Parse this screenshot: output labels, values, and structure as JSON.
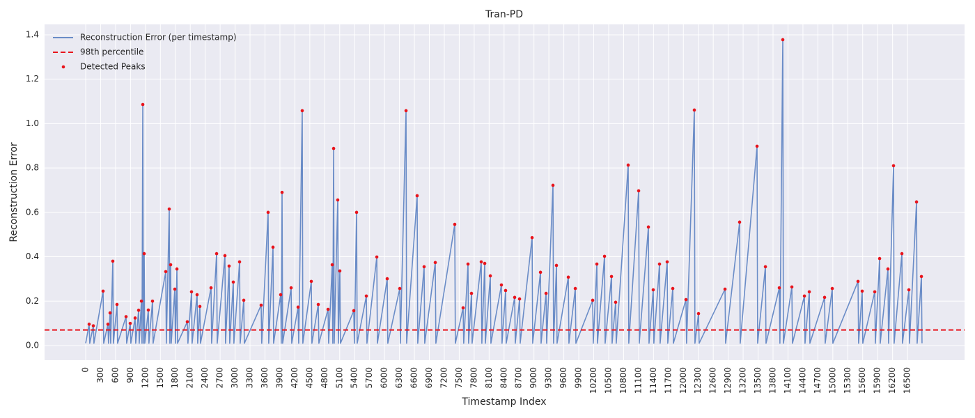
{
  "chart_data": {
    "type": "line",
    "title": "Tran-PD",
    "x_label": "Timestamp Index",
    "y_label": "Reconstruction Error",
    "xlim": [
      -825,
      17645
    ],
    "ylim": [
      -0.066,
      1.447
    ],
    "xticks": [
      0,
      300,
      600,
      900,
      1200,
      1500,
      1800,
      2100,
      2400,
      2700,
      3000,
      3300,
      3600,
      3900,
      4200,
      4500,
      4800,
      5100,
      5400,
      5700,
      6000,
      6300,
      6600,
      6900,
      7200,
      7500,
      7800,
      8100,
      8400,
      8700,
      9000,
      9300,
      9600,
      9900,
      10200,
      10500,
      10800,
      11100,
      11400,
      11700,
      12000,
      12300,
      12600,
      12900,
      13200,
      13500,
      13800,
      14100,
      14400,
      14700,
      15000,
      15300,
      15600,
      15900,
      16200,
      16500
    ],
    "yticks": [
      {
        "value": 0,
        "label": "0.0"
      },
      0.2,
      0.4,
      0.6,
      0.8,
      {
        "value": 1,
        "label": "1.0"
      },
      1.2,
      1.4
    ],
    "grid": true,
    "legend": "upper-left",
    "threshold": {
      "name": "98th percentile",
      "value": 0.07,
      "color": "#e8141c"
    },
    "series": [
      {
        "name": "Reconstruction Error (per timestamp)",
        "color": "#6a8cc7",
        "mark": "line",
        "x": [
          0,
          70,
          82,
          154,
          166,
          350,
          362,
          447,
          459,
          490,
          502,
          545,
          557,
          629,
          641,
          811,
          823,
          895,
          907,
          993,
          1005,
          1063,
          1075,
          1119,
          1131,
          1147,
          1159,
          1175,
          1187,
          1258,
          1270,
          1342,
          1354,
          1608,
          1620,
          1678,
          1690,
          1706,
          1718,
          1790,
          1802,
          1832,
          1844,
          2041,
          2053,
          2125,
          2137,
          2237,
          2249,
          2293,
          2305,
          2517,
          2529,
          2629,
          2641,
          2796,
          2808,
          2880,
          2892,
          2964,
          2976,
          3090,
          3102,
          3174,
          3186,
          3523,
          3535,
          3663,
          3675,
          3761,
          3773,
          3915,
          3927,
          3943,
          3955,
          4125,
          4137,
          4265,
          4277,
          4348,
          4360,
          4530,
          4542,
          4670,
          4682,
          4866,
          4878,
          4950,
          4962,
          4978,
          4990,
          5061,
          5073,
          5103,
          5115,
          5383,
          5395,
          5439,
          5451,
          5635,
          5647,
          5845,
          5857,
          6054,
          6066,
          6306,
          6318,
          6432,
          6444,
          6655,
          6667,
          6795,
          6807,
          7019,
          7031,
          7410,
          7422,
          7578,
          7590,
          7676,
          7688,
          7746,
          7758,
          7942,
          7954,
          8012,
          8024,
          8124,
          8136,
          8347,
          8359,
          8431,
          8443,
          8613,
          8625,
          8711,
          8723,
          8963,
          8975,
          9131,
          9143,
          9243,
          9255,
          9382,
          9394,
          9452,
          9464,
          9690,
          9702,
          9830,
          9842,
          10179,
          10191,
          10263,
          10275,
          10417,
          10429,
          10557,
          10569,
          10640,
          10652,
          10892,
          10904,
          11102,
          11114,
          11298,
          11310,
          11395,
          11407,
          11521,
          11533,
          11675,
          11687,
          11787,
          11799,
          12052,
          12064,
          12220,
          12232,
          12304,
          12316,
          12836,
          12848,
          13129,
          13141,
          13479,
          13491,
          13647,
          13659,
          13926,
          13938,
          13996,
          14008,
          14178,
          14190,
          14430,
          14442,
          14528,
          14540,
          14835,
          14847,
          14989,
          15001,
          15506,
          15518,
          15590,
          15602,
          15842,
          15854,
          15940,
          15952,
          16107,
          16119,
          16219,
          16231,
          16387,
          16399,
          16527,
          16539,
          16681,
          16693,
          16779,
          16791
        ],
        "values": [
          0.01,
          0.096,
          0.01,
          0.089,
          0.01,
          0.245,
          0.01,
          0.096,
          0.01,
          0.147,
          0.01,
          0.38,
          0.01,
          0.185,
          0.01,
          0.13,
          0.01,
          0.1,
          0.01,
          0.124,
          0.01,
          0.159,
          0.01,
          0.2,
          0.01,
          1.086,
          0.01,
          0.414,
          0.01,
          0.16,
          0.01,
          0.2,
          0.01,
          0.333,
          0.01,
          0.615,
          0.01,
          0.364,
          0.01,
          0.254,
          0.01,
          0.345,
          0.01,
          0.107,
          0.01,
          0.242,
          0.01,
          0.229,
          0.01,
          0.176,
          0.01,
          0.26,
          0.01,
          0.414,
          0.01,
          0.405,
          0.01,
          0.358,
          0.01,
          0.286,
          0.01,
          0.377,
          0.01,
          0.204,
          0.01,
          0.182,
          0.01,
          0.6,
          0.01,
          0.443,
          0.01,
          0.229,
          0.01,
          0.69,
          0.01,
          0.26,
          0.01,
          0.173,
          0.01,
          1.058,
          0.01,
          0.289,
          0.01,
          0.185,
          0.01,
          0.163,
          0.01,
          0.364,
          0.01,
          0.888,
          0.01,
          0.656,
          0.01,
          0.336,
          0.01,
          0.157,
          0.01,
          0.6,
          0.01,
          0.223,
          0.01,
          0.399,
          0.01,
          0.301,
          0.01,
          0.257,
          0.01,
          1.058,
          0.01,
          0.675,
          0.01,
          0.355,
          0.01,
          0.374,
          0.01,
          0.546,
          0.01,
          0.17,
          0.01,
          0.367,
          0.01,
          0.235,
          0.01,
          0.377,
          0.01,
          0.37,
          0.01,
          0.314,
          0.01,
          0.273,
          0.01,
          0.248,
          0.01,
          0.217,
          0.01,
          0.21,
          0.01,
          0.486,
          0.01,
          0.33,
          0.01,
          0.235,
          0.01,
          0.722,
          0.01,
          0.361,
          0.01,
          0.308,
          0.01,
          0.257,
          0.01,
          0.204,
          0.01,
          0.367,
          0.01,
          0.402,
          0.01,
          0.311,
          0.01,
          0.195,
          0.01,
          0.813,
          0.01,
          0.697,
          0.01,
          0.534,
          0.01,
          0.251,
          0.01,
          0.367,
          0.01,
          0.377,
          0.01,
          0.257,
          0.01,
          0.207,
          0.01,
          1.061,
          0.01,
          0.144,
          0.01,
          0.254,
          0.01,
          0.556,
          0.01,
          0.898,
          0.01,
          0.355,
          0.01,
          0.26,
          0.01,
          1.378,
          0.01,
          0.264,
          0.01,
          0.223,
          0.01,
          0.242,
          0.01,
          0.217,
          0.01,
          0.257,
          0.01,
          0.289,
          0.01,
          0.245,
          0.01,
          0.242,
          0.01,
          0.392,
          0.01,
          0.345,
          0.01,
          0.81,
          0.01,
          0.414,
          0.01,
          0.251,
          0.01,
          0.647,
          0.01,
          0.311,
          0.01
        ]
      },
      {
        "name": "Detected Peaks",
        "color": "#e8141c",
        "mark": "point",
        "x": [
          70,
          154,
          350,
          447,
          490,
          545,
          629,
          811,
          895,
          993,
          1063,
          1119,
          1147,
          1175,
          1258,
          1342,
          1608,
          1678,
          1706,
          1790,
          1832,
          2041,
          2125,
          2237,
          2293,
          2517,
          2629,
          2796,
          2880,
          2964,
          3090,
          3174,
          3523,
          3663,
          3761,
          3915,
          3943,
          4125,
          4265,
          4348,
          4530,
          4670,
          4866,
          4950,
          4978,
          5061,
          5103,
          5383,
          5439,
          5635,
          5845,
          6054,
          6306,
          6432,
          6655,
          6795,
          7019,
          7410,
          7578,
          7676,
          7746,
          7942,
          8012,
          8124,
          8347,
          8431,
          8613,
          8711,
          8963,
          9131,
          9243,
          9382,
          9452,
          9690,
          9830,
          10179,
          10263,
          10417,
          10557,
          10640,
          10892,
          11102,
          11298,
          11395,
          11521,
          11675,
          11787,
          12052,
          12220,
          12304,
          12836,
          13129,
          13479,
          13647,
          13926,
          13996,
          14178,
          14430,
          14528,
          14835,
          14989,
          15506,
          15590,
          15842,
          15940,
          16107,
          16219,
          16387,
          16527,
          16681,
          16779
        ],
        "values": [
          0.096,
          0.089,
          0.245,
          0.096,
          0.147,
          0.38,
          0.185,
          0.13,
          0.1,
          0.124,
          0.159,
          0.2,
          1.086,
          0.414,
          0.16,
          0.2,
          0.333,
          0.615,
          0.364,
          0.254,
          0.345,
          0.107,
          0.242,
          0.229,
          0.176,
          0.26,
          0.414,
          0.405,
          0.358,
          0.286,
          0.377,
          0.204,
          0.182,
          0.6,
          0.443,
          0.229,
          0.69,
          0.26,
          0.173,
          1.058,
          0.289,
          0.185,
          0.163,
          0.364,
          0.888,
          0.656,
          0.336,
          0.157,
          0.6,
          0.223,
          0.399,
          0.301,
          0.257,
          1.058,
          0.675,
          0.355,
          0.374,
          0.546,
          0.17,
          0.367,
          0.235,
          0.377,
          0.37,
          0.314,
          0.273,
          0.248,
          0.217,
          0.21,
          0.486,
          0.33,
          0.235,
          0.722,
          0.361,
          0.308,
          0.257,
          0.204,
          0.367,
          0.402,
          0.311,
          0.195,
          0.813,
          0.697,
          0.534,
          0.251,
          0.367,
          0.377,
          0.257,
          0.207,
          1.061,
          0.144,
          0.254,
          0.556,
          0.898,
          0.355,
          0.26,
          1.378,
          0.264,
          0.223,
          0.242,
          0.217,
          0.257,
          0.289,
          0.245,
          0.242,
          0.392,
          0.345,
          0.81,
          0.414,
          0.251,
          0.647,
          0.311
        ]
      }
    ]
  }
}
